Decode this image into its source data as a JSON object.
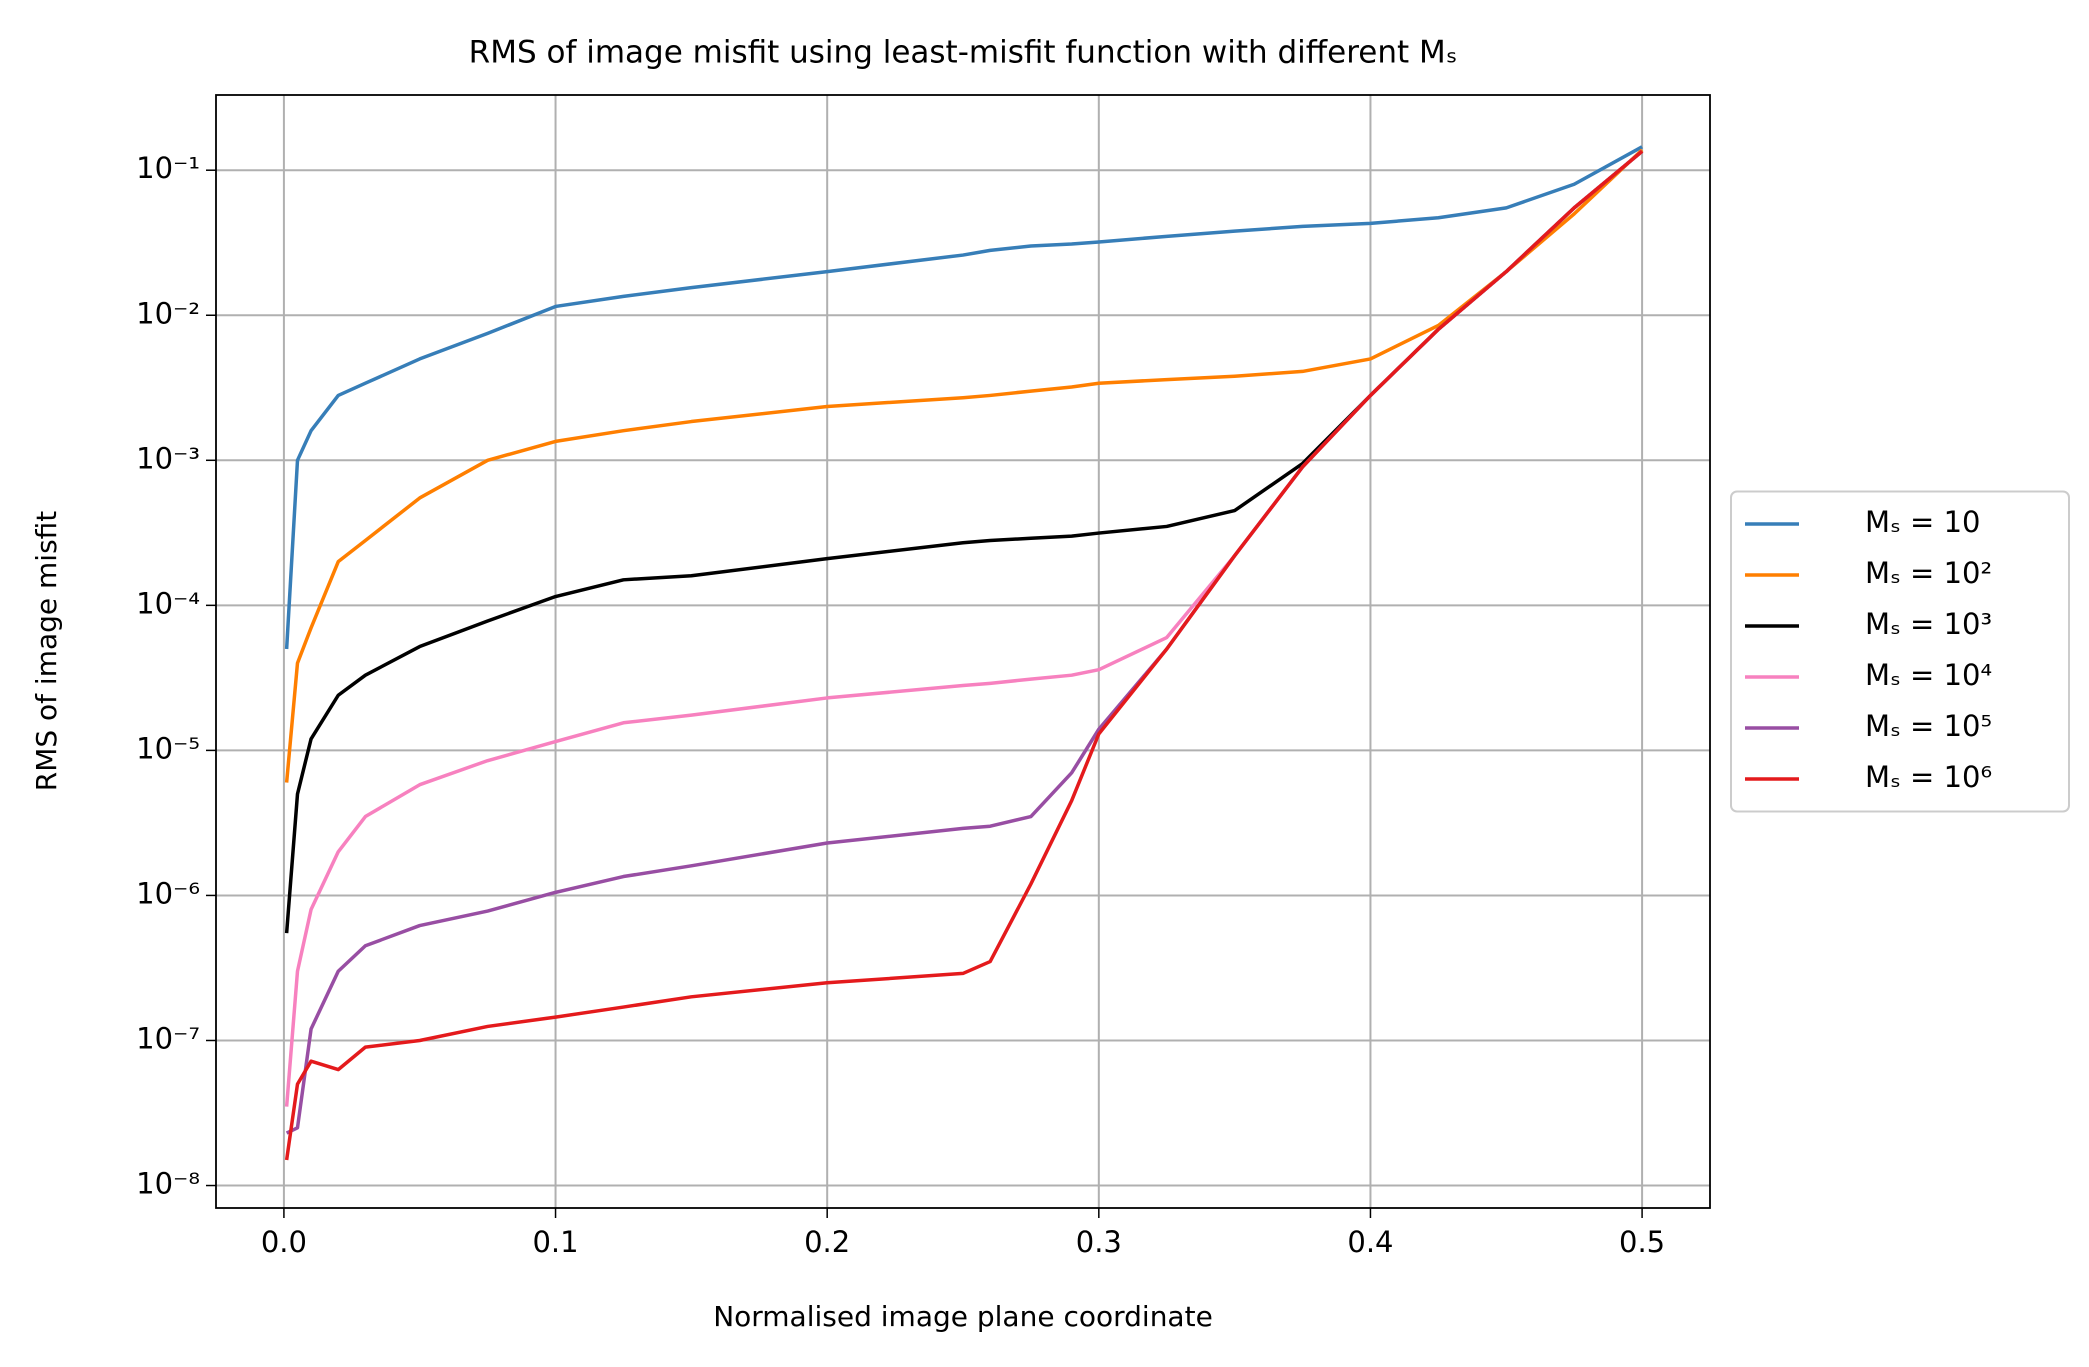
{
  "chart_data": {
    "type": "line",
    "title": "RMS of image misfit using least-misfit function with different Mₛ",
    "xlabel": "Normalised image plane coordinate",
    "ylabel": "RMS of image misfit",
    "yscale": "log",
    "grid": true,
    "legend": "right",
    "x": [
      0.001,
      0.005,
      0.01,
      0.02,
      0.03,
      0.05,
      0.075,
      0.1,
      0.125,
      0.15,
      0.2,
      0.25,
      0.26,
      0.275,
      0.29,
      0.3,
      0.325,
      0.35,
      0.375,
      0.4,
      0.425,
      0.45,
      0.475,
      0.5
    ],
    "xlim": [
      -0.025,
      0.525
    ],
    "xticks": [
      {
        "value": 0,
        "label": "0.0"
      },
      0.1,
      0.2,
      0.3,
      0.4,
      0.5
    ],
    "ylim": [
      7e-09,
      0.33
    ],
    "yticks": [
      {
        "value": 1e-08,
        "label": "10⁻⁸"
      },
      {
        "value": 1e-07,
        "label": "10⁻⁷"
      },
      {
        "value": 1e-06,
        "label": "10⁻⁶"
      },
      {
        "value": 1e-05,
        "label": "10⁻⁵"
      },
      {
        "value": 0.0001,
        "label": "10⁻⁴"
      },
      {
        "value": 0.001,
        "label": "10⁻³"
      },
      {
        "value": 0.01,
        "label": "10⁻²"
      },
      {
        "value": 0.1,
        "label": "10⁻¹"
      }
    ],
    "series": [
      {
        "name": "Mₛ = 10",
        "color": "#377eb8",
        "values": [
          5e-05,
          0.001,
          0.0016,
          0.0028,
          0.0034,
          0.005,
          0.0075,
          0.0115,
          0.0135,
          0.0155,
          0.02,
          0.026,
          0.028,
          0.03,
          0.031,
          0.032,
          0.035,
          0.038,
          0.041,
          0.043,
          0.047,
          0.055,
          0.08,
          0.145
        ]
      },
      {
        "name": "Mₛ = 10²",
        "color": "#ff7f00",
        "values": [
          6e-06,
          4e-05,
          7e-05,
          0.0002,
          0.00028,
          0.00055,
          0.001,
          0.00135,
          0.0016,
          0.00185,
          0.00235,
          0.0027,
          0.0028,
          0.003,
          0.0032,
          0.0034,
          0.0036,
          0.0038,
          0.0041,
          0.005,
          0.0085,
          0.02,
          0.05,
          0.138
        ]
      },
      {
        "name": "Mₛ = 10³",
        "color": "#000000",
        "values": [
          5.5e-07,
          5e-06,
          1.2e-05,
          2.4e-05,
          3.3e-05,
          5.2e-05,
          7.8e-05,
          0.000115,
          0.00015,
          0.00016,
          0.00021,
          0.00027,
          0.00028,
          0.00029,
          0.0003,
          0.000315,
          0.00035,
          0.00045,
          0.00095,
          0.0028,
          0.008,
          0.02,
          0.055,
          0.135
        ]
      },
      {
        "name": "Mₛ = 10⁴",
        "color": "#f781bf",
        "values": [
          3.5e-08,
          3e-07,
          8e-07,
          2e-06,
          3.5e-06,
          5.8e-06,
          8.5e-06,
          1.15e-05,
          1.55e-05,
          1.75e-05,
          2.3e-05,
          2.8e-05,
          2.9e-05,
          3.1e-05,
          3.3e-05,
          3.6e-05,
          6e-05,
          0.00022,
          0.0009,
          0.0028,
          0.008,
          0.02,
          0.055,
          0.135
        ]
      },
      {
        "name": "Mₛ = 10⁵",
        "color": "#984ea3",
        "values": [
          2.3e-08,
          2.5e-08,
          1.2e-07,
          3e-07,
          4.5e-07,
          6.2e-07,
          7.8e-07,
          1.05e-06,
          1.35e-06,
          1.6e-06,
          2.3e-06,
          2.9e-06,
          3e-06,
          3.5e-06,
          7e-06,
          1.4e-05,
          5e-05,
          0.00022,
          0.0009,
          0.0028,
          0.008,
          0.02,
          0.055,
          0.135
        ]
      },
      {
        "name": "Mₛ = 10⁶",
        "color": "#e41a1c",
        "values": [
          1.5e-08,
          5e-08,
          7.2e-08,
          6.3e-08,
          9e-08,
          1e-07,
          1.25e-07,
          1.45e-07,
          1.7e-07,
          2e-07,
          2.5e-07,
          2.9e-07,
          3.5e-07,
          1.2e-06,
          4.5e-06,
          1.3e-05,
          5e-05,
          0.00022,
          0.0009,
          0.0028,
          0.008,
          0.02,
          0.055,
          0.135
        ]
      }
    ]
  }
}
